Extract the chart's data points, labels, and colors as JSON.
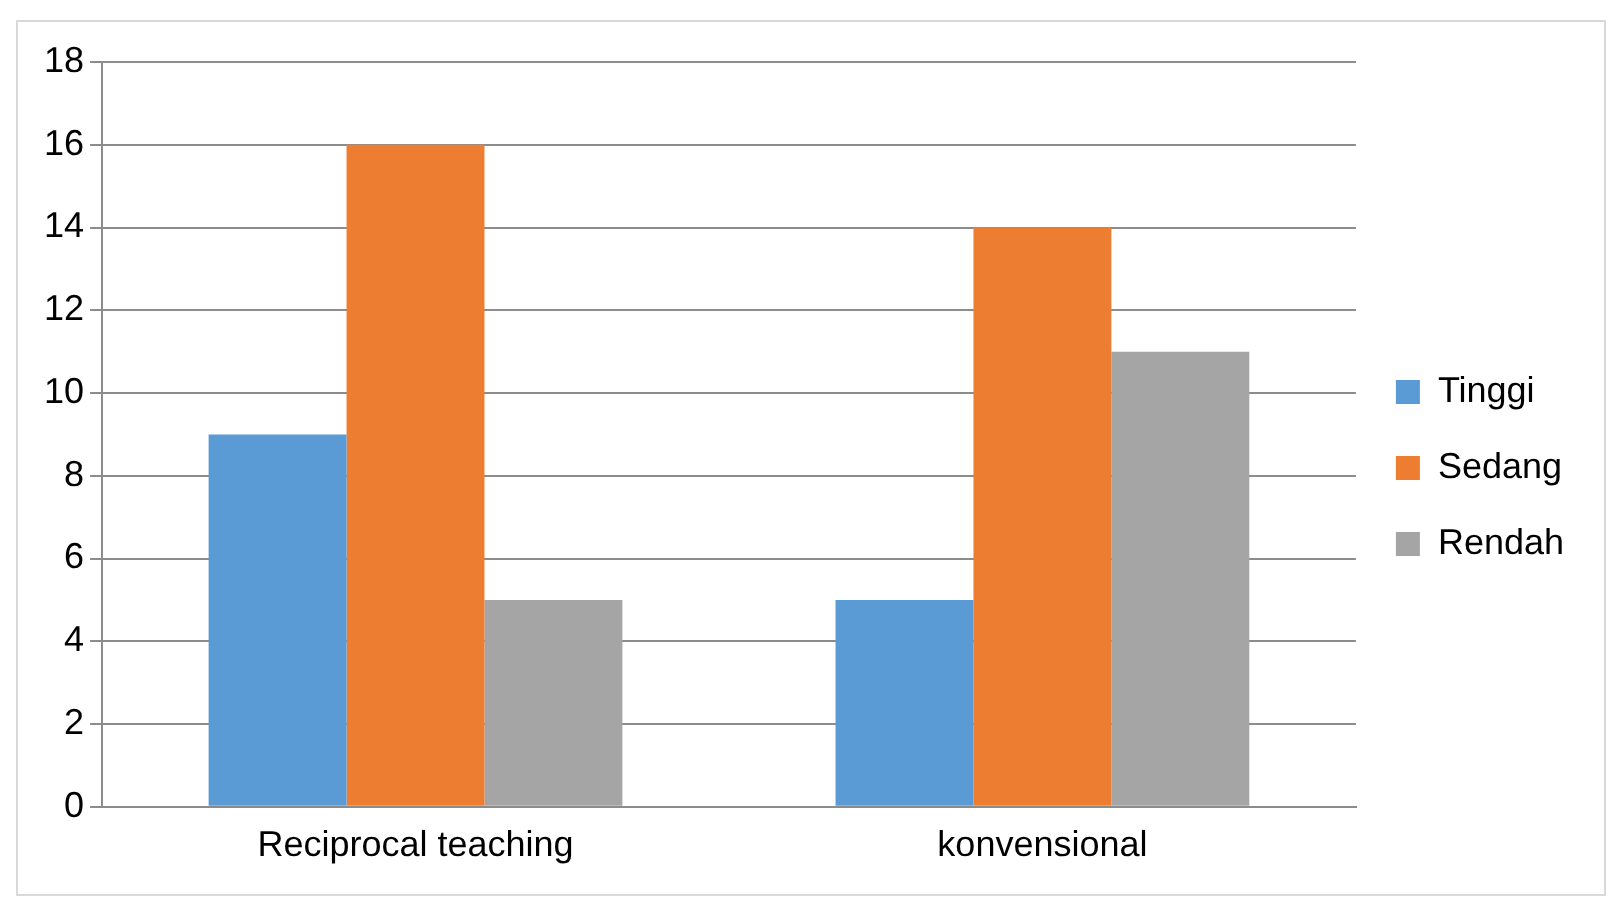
{
  "chart_data": {
    "type": "bar",
    "categories": [
      "Reciprocal teaching",
      "konvensional"
    ],
    "series": [
      {
        "name": "Tinggi",
        "color": "#5b9bd5",
        "values": [
          9,
          5
        ]
      },
      {
        "name": "Sedang",
        "color": "#ed7d31",
        "values": [
          16,
          14
        ]
      },
      {
        "name": "Rendah",
        "color": "#a5a5a5",
        "values": [
          5,
          11
        ]
      }
    ],
    "ylim": [
      0,
      18
    ],
    "yticks": [
      0,
      2,
      4,
      6,
      8,
      10,
      12,
      14,
      16,
      18
    ],
    "grid": "y",
    "legend": "right"
  }
}
